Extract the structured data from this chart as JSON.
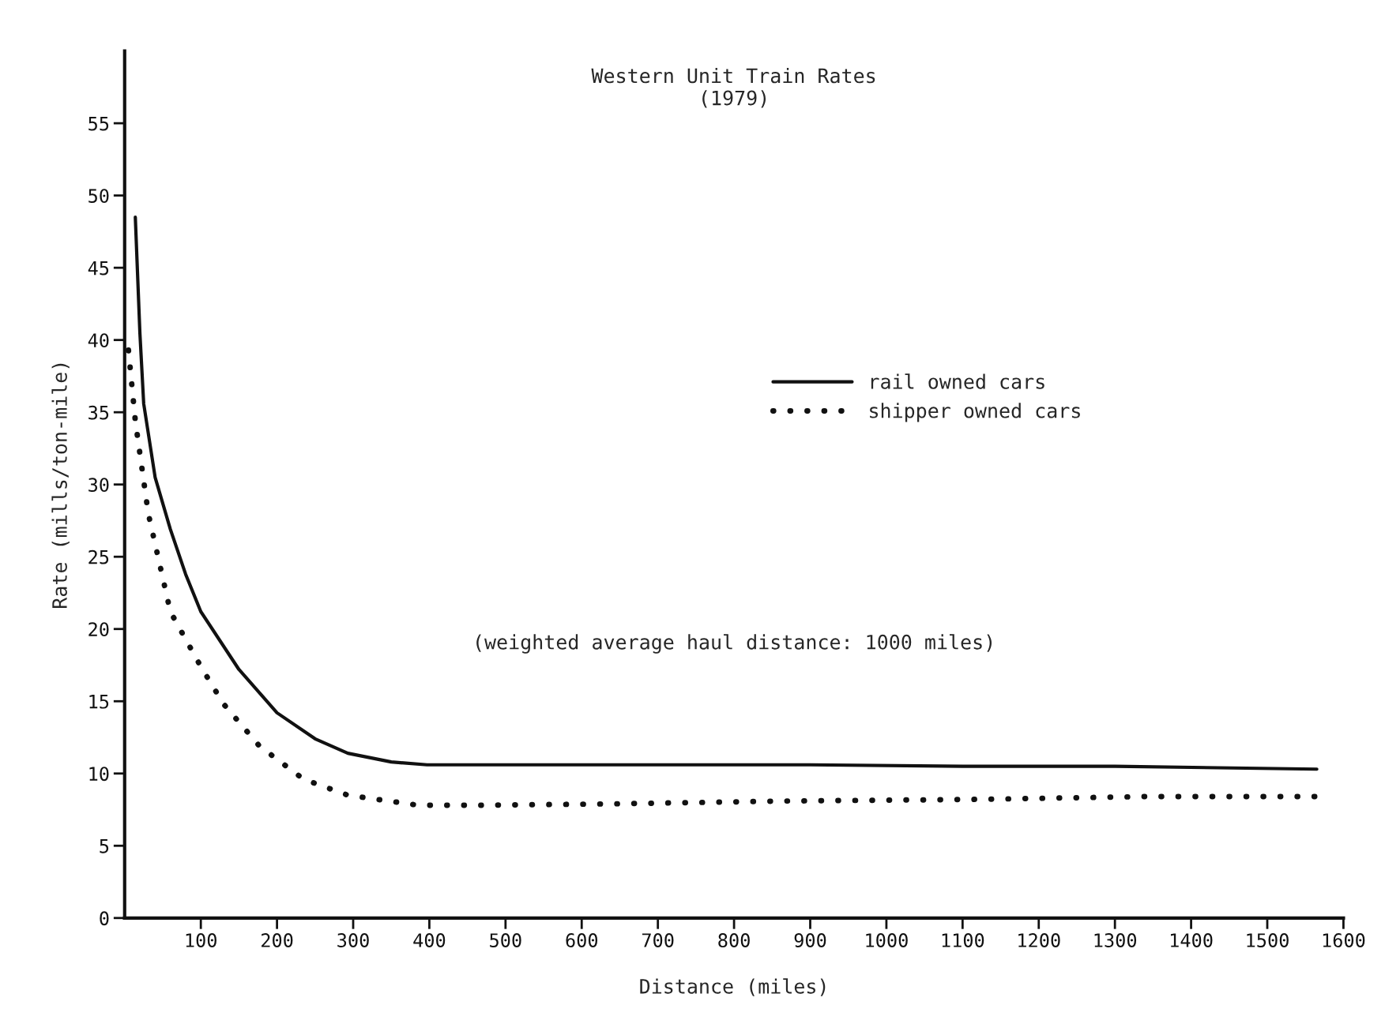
{
  "chart_data": {
    "type": "line",
    "title": "Western Unit Train Rates\n(1979)",
    "xlabel": "Distance (miles)",
    "ylabel": "Rate (mills/ton-mile)",
    "annotations": [
      "(weighted average haul distance: 1000 miles)"
    ],
    "xlim": [
      0,
      1600
    ],
    "xticks": [
      100,
      200,
      300,
      400,
      500,
      600,
      700,
      800,
      900,
      1000,
      1100,
      1200,
      1300,
      1400,
      1500,
      1600
    ],
    "ylim": [
      0,
      60
    ],
    "yticks": [
      0,
      5,
      10,
      15,
      20,
      25,
      30,
      35,
      40,
      45,
      50,
      55
    ],
    "grid": false,
    "legend": "right",
    "series": [
      {
        "name": "rail owned cars",
        "color": "#111111",
        "line_style": "solid",
        "x": [
          14,
          20,
          25,
          40,
          60,
          80,
          100,
          150,
          200,
          250,
          293,
          350,
          397,
          500,
          700,
          900,
          1100,
          1300,
          1565
        ],
        "values": [
          48.5,
          40.5,
          35.6,
          30.5,
          26.9,
          23.8,
          21.2,
          17.2,
          14.2,
          12.4,
          11.4,
          10.8,
          10.6,
          10.6,
          10.6,
          10.6,
          10.5,
          10.5,
          10.3
        ]
      },
      {
        "name": "shipper owned cars",
        "color": "#111111",
        "line_style": "dotted",
        "x": [
          5,
          14,
          31,
          60,
          100,
          130,
          177,
          235,
          293,
          386,
          467,
          641,
          874,
          1106,
          1338,
          1565
        ],
        "values": [
          39.3,
          34.4,
          28,
          21.2,
          17.4,
          14.8,
          11.9,
          9.6,
          8.5,
          7.8,
          7.8,
          7.9,
          8.1,
          8.2,
          8.4,
          8.4
        ]
      }
    ]
  }
}
